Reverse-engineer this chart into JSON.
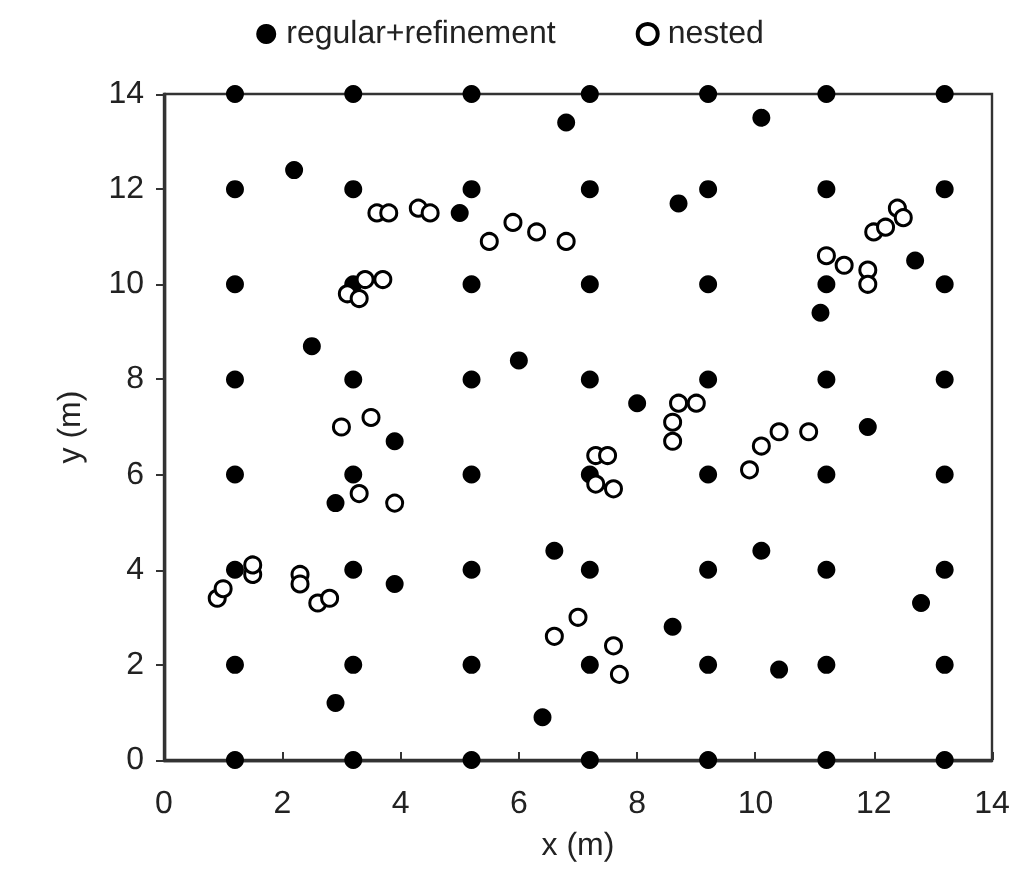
{
  "chart_data": {
    "type": "scatter",
    "xlabel": "x (m)",
    "ylabel": "y (m)",
    "xlim": [
      0,
      14
    ],
    "xticks": [
      0,
      2,
      4,
      6,
      8,
      10,
      12,
      14
    ],
    "ylim": [
      0,
      14
    ],
    "yticks": [
      0,
      2,
      4,
      6,
      8,
      10,
      12,
      14
    ],
    "grid": false,
    "legend": "top",
    "marker": "circle",
    "series": [
      {
        "name": "regular+refinement",
        "color": "#000000",
        "x": [
          1.2,
          1.2,
          1.2,
          1.2,
          1.2,
          1.2,
          1.2,
          1.2,
          3.2,
          3.2,
          3.2,
          3.2,
          3.2,
          3.2,
          3.2,
          3.2,
          5.2,
          5.2,
          5.2,
          5.2,
          5.2,
          5.2,
          5.2,
          5.2,
          7.2,
          7.2,
          7.2,
          7.2,
          7.2,
          7.2,
          7.2,
          7.2,
          9.2,
          9.2,
          9.2,
          9.2,
          9.2,
          9.2,
          9.2,
          9.2,
          11.2,
          11.2,
          11.2,
          11.2,
          11.2,
          11.2,
          11.2,
          11.2,
          13.2,
          13.2,
          13.2,
          13.2,
          13.2,
          13.2,
          13.2,
          13.2,
          2.2,
          6.8,
          10.1,
          5,
          8.7,
          11.1,
          12.7,
          2.5,
          6,
          8,
          3.9,
          2.9,
          11.9,
          3.9,
          6.6,
          8.6,
          10.1,
          12.8,
          2.9,
          6.4,
          10.4
        ],
        "values": [
          0,
          2,
          4,
          6,
          8,
          10,
          12,
          14,
          0,
          2,
          4,
          6,
          8,
          10,
          12,
          14,
          0,
          2,
          4,
          6,
          8,
          10,
          12,
          14,
          0,
          2,
          4,
          6,
          8,
          10,
          12,
          14,
          0,
          2,
          4,
          6,
          8,
          10,
          12,
          14,
          0,
          2,
          4,
          6,
          8,
          10,
          12,
          14,
          0,
          2,
          4,
          6,
          8,
          10,
          12,
          14,
          12.4,
          13.4,
          13.5,
          11.5,
          11.7,
          9.4,
          10.5,
          8.7,
          8.4,
          7.5,
          6.7,
          5.4,
          7,
          3.7,
          4.4,
          2.8,
          4.4,
          3.3,
          1.2,
          0.9,
          1.9
        ]
      },
      {
        "name": "nested",
        "color": "#000000",
        "x": [
          3.6,
          3.8,
          4.3,
          4.5,
          5.5,
          5.9,
          6.3,
          6.8,
          3.1,
          3.3,
          3.4,
          3.7,
          3,
          3.5,
          3.3,
          3.9,
          0.9,
          1,
          1.5,
          1.5,
          2.3,
          2.3,
          2.6,
          2.8,
          6.6,
          7,
          7.6,
          7.7,
          7.3,
          7.5,
          7.3,
          7.6,
          8.6,
          8.6,
          8.7,
          9,
          9.9,
          10.1,
          10.4,
          10.9,
          11.2,
          11.5,
          11.9,
          11.9,
          12,
          12.2,
          12.4,
          12.5
        ],
        "values": [
          11.5,
          11.5,
          11.6,
          11.5,
          10.9,
          11.3,
          11.1,
          10.9,
          9.8,
          9.7,
          10.1,
          10.1,
          7,
          7.2,
          5.6,
          5.4,
          3.4,
          3.6,
          3.9,
          4.1,
          3.9,
          3.7,
          3.3,
          3.4,
          2.6,
          3,
          2.4,
          1.8,
          6.4,
          6.4,
          5.8,
          5.7,
          6.7,
          7.1,
          7.5,
          7.5,
          6.1,
          6.6,
          6.9,
          6.9,
          10.6,
          10.4,
          10.3,
          10,
          11.1,
          11.2,
          11.6,
          11.4
        ]
      }
    ]
  }
}
